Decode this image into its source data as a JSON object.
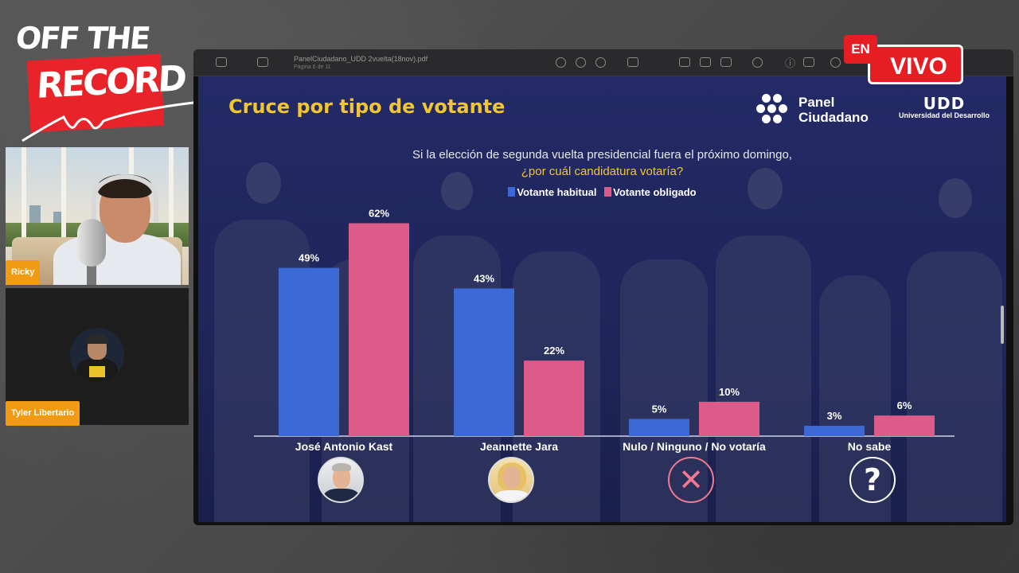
{
  "overlay": {
    "logo_line1": "OFF THE",
    "logo_line2": "RECORD",
    "live_en": "EN",
    "live_vivo": "VIVO",
    "participants": [
      {
        "name": "Ricky"
      },
      {
        "name": "Tyler Libertario"
      }
    ]
  },
  "viewer": {
    "file_name": "PanelCiudadano_UDD 2vuelta(18nov).pdf",
    "page_indicator": "Página 6 de 11"
  },
  "slide": {
    "title": "Cruce por tipo de votante",
    "panel_logo_line1": "Panel",
    "panel_logo_line2": "Ciudadano",
    "udd_logo": "UDD",
    "udd_sub": "Universidad del Desarrollo",
    "question_line1": "Si la elección de segunda vuelta presidencial fuera el próximo domingo,",
    "question_line2": "¿por cuál candidatura votaría?"
  },
  "colors": {
    "habitual": "#3c69d6",
    "obligado": "#dc5b88",
    "title": "#f2c533"
  },
  "chart_data": {
    "type": "bar",
    "categories": [
      "José Antonio Kast",
      "Jeannette Jara",
      "Nulo / Ninguno / No votaría",
      "No sabe"
    ],
    "series": [
      {
        "name": "Votante habitual",
        "values": [
          49,
          43,
          5,
          3
        ]
      },
      {
        "name": "Votante obligado",
        "values": [
          62,
          22,
          10,
          6
        ]
      }
    ],
    "value_labels": {
      "Votante habitual": [
        "49%",
        "43%",
        "5%",
        "3%"
      ],
      "Votante obligado": [
        "62%",
        "22%",
        "10%",
        "6%"
      ]
    },
    "unit": "%",
    "ylim": [
      0,
      70
    ],
    "legend_position": "top",
    "grid": false,
    "category_icons": [
      "kast-photo",
      "jara-photo",
      "x-icon",
      "question-icon"
    ]
  }
}
